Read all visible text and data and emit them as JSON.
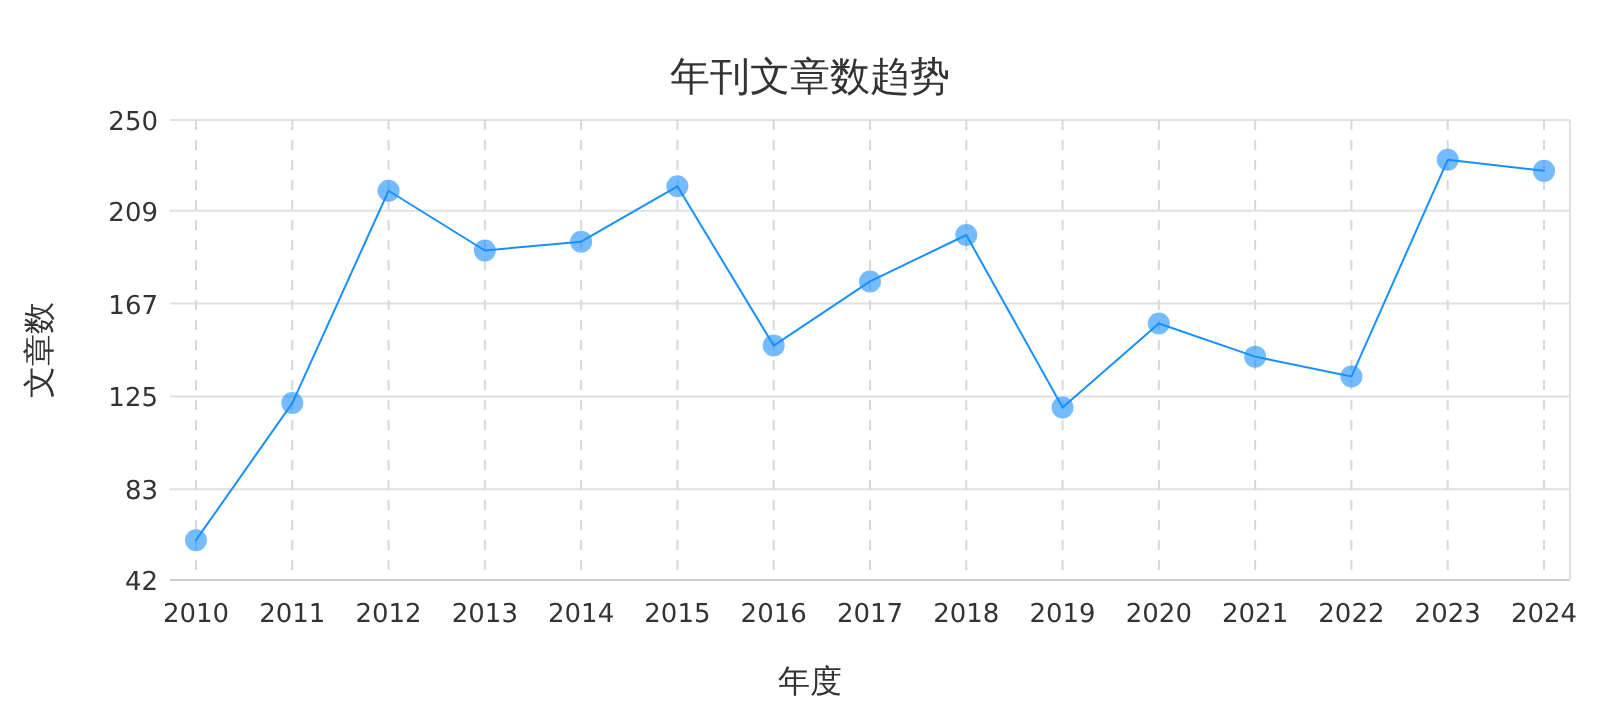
{
  "chart_data": {
    "type": "line",
    "title": "年刊文章数趋势",
    "xlabel": "年度",
    "ylabel": "文章数",
    "categories": [
      "2010",
      "2011",
      "2012",
      "2013",
      "2014",
      "2015",
      "2016",
      "2017",
      "2018",
      "2019",
      "2020",
      "2021",
      "2022",
      "2023",
      "2024"
    ],
    "series": [
      {
        "color": "#1890ff",
        "values": [
          60,
          122,
          218,
          191,
          195,
          220,
          148,
          177,
          198,
          120,
          158,
          143,
          134,
          232,
          227
        ]
      }
    ],
    "ylim": [
      42,
      250
    ],
    "yticks": [
      42,
      83,
      125,
      167,
      209,
      250
    ],
    "grid": true,
    "marker": "circle"
  }
}
